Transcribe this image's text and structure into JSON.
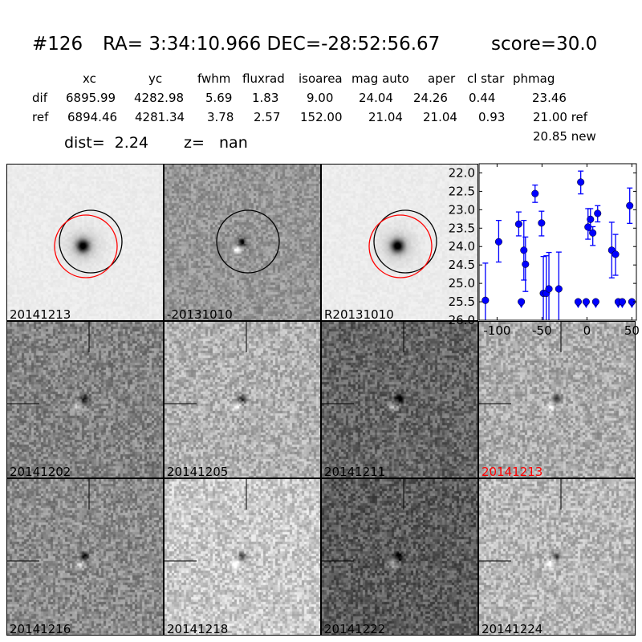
{
  "header": {
    "title_id": "#126",
    "title_radec": "RA= 3:34:10.966 DEC=-28:52:56.67",
    "title_score": "score=30.0"
  },
  "table": {
    "columns": [
      "xc",
      "yc",
      "fwhm",
      "fluxrad",
      "isoarea",
      "mag auto",
      "aper",
      "cl star",
      "phmag"
    ],
    "rows": [
      {
        "label": "dif",
        "values": [
          "6895.99",
          "4282.98",
          "5.69",
          "1.83",
          "9.00",
          "24.04",
          "24.26",
          "0.44",
          "23.46"
        ]
      },
      {
        "label": "ref",
        "values": [
          "6894.46",
          "4281.34",
          "3.78",
          "2.57",
          "152.00",
          "21.04",
          "21.04",
          "0.93",
          "21.00 ref"
        ]
      }
    ],
    "new_phmag": "20.85 new",
    "dist": "dist=  2.24",
    "z": "z=   nan"
  },
  "stamps": [
    {
      "label": "20141213",
      "label_color": "#000000",
      "tone": "#ececec",
      "kind": "star",
      "circles": [
        "black",
        "red"
      ]
    },
    {
      "label": "-20131010",
      "label_color": "#000000",
      "tone": "#969696",
      "kind": "dipole",
      "circles": [
        "black"
      ]
    },
    {
      "label": "R20131010",
      "label_color": "#000000",
      "tone": "#ececec",
      "kind": "star",
      "circles": [
        "black",
        "red"
      ]
    },
    {
      "label": "20141202",
      "label_color": "#000000",
      "tone": "#848484",
      "kind": "noise"
    },
    {
      "label": "20141205",
      "label_color": "#000000",
      "tone": "#b0b0b0",
      "kind": "noise"
    },
    {
      "label": "20141211",
      "label_color": "#000000",
      "tone": "#666666",
      "kind": "noise"
    },
    {
      "label": "20141213",
      "label_color": "#ff0000",
      "tone": "#acacac",
      "kind": "noise"
    },
    {
      "label": "20141216",
      "label_color": "#000000",
      "tone": "#8c8c8c",
      "kind": "noise"
    },
    {
      "label": "20141218",
      "label_color": "#000000",
      "tone": "#cacaca",
      "kind": "noise"
    },
    {
      "label": "20141222",
      "label_color": "#000000",
      "tone": "#5c5c5c",
      "kind": "noise"
    },
    {
      "label": "20141224",
      "label_color": "#000000",
      "tone": "#b8b8b8",
      "kind": "noise"
    }
  ],
  "chart_data": {
    "type": "scatter",
    "title": "",
    "xlabel": "",
    "ylabel": "",
    "xlim": [
      -120,
      55
    ],
    "ylim": [
      26.0,
      21.75
    ],
    "y_inverted": true,
    "grid": false,
    "color": "#0000ff",
    "x_ticks": [
      "-100",
      "-50",
      "0",
      "50"
    ],
    "y_ticks": [
      "22.0",
      "22.5",
      "23.0",
      "23.5",
      "24.0",
      "24.5",
      "25.0",
      "25.5",
      "26.0"
    ],
    "detections": [
      {
        "x": -113,
        "y": 25.46,
        "lo": 24.45,
        "hi": 26.5
      },
      {
        "x": -98.2,
        "y": 23.87,
        "lo": 23.29,
        "hi": 24.42
      },
      {
        "x": -75.9,
        "y": 23.39,
        "lo": 23.06,
        "hi": 23.71
      },
      {
        "x": -70.2,
        "y": 24.1,
        "lo": 23.29,
        "hi": 24.91
      },
      {
        "x": -68.4,
        "y": 24.48,
        "lo": 23.74,
        "hi": 25.22
      },
      {
        "x": -57.7,
        "y": 22.56,
        "lo": 22.33,
        "hi": 22.8
      },
      {
        "x": -50.5,
        "y": 23.36,
        "lo": 23.04,
        "hi": 23.71
      },
      {
        "x": -48.5,
        "y": 25.27,
        "lo": 24.27,
        "hi": 26.5
      },
      {
        "x": -45.2,
        "y": 25.27,
        "lo": 24.25,
        "hi": 26.5
      },
      {
        "x": -42.3,
        "y": 25.15,
        "lo": 24.16,
        "hi": 26.5
      },
      {
        "x": -31.3,
        "y": 25.15,
        "lo": 24.15,
        "hi": 26.5
      },
      {
        "x": -6.9,
        "y": 22.25,
        "lo": 21.95,
        "hi": 22.57
      },
      {
        "x": 1.2,
        "y": 23.47,
        "lo": 22.97,
        "hi": 23.8
      },
      {
        "x": 3.9,
        "y": 23.26,
        "lo": 22.97,
        "hi": 23.57
      },
      {
        "x": 6.5,
        "y": 23.63,
        "lo": 23.46,
        "hi": 23.97
      },
      {
        "x": 11.9,
        "y": 23.1,
        "lo": 22.89,
        "hi": 23.33
      },
      {
        "x": 27.6,
        "y": 24.1,
        "lo": 23.34,
        "hi": 24.85
      },
      {
        "x": 31.8,
        "y": 24.21,
        "lo": 23.67,
        "hi": 24.78
      },
      {
        "x": 47.6,
        "y": 22.89,
        "lo": 22.41,
        "hi": 23.37
      }
    ],
    "upper_limits": [
      {
        "x": -73,
        "y": 25.5
      },
      {
        "x": -9.8,
        "y": 25.5
      },
      {
        "x": -0.9,
        "y": 25.5
      },
      {
        "x": 9.8,
        "y": 25.5
      },
      {
        "x": 34.8,
        "y": 25.5
      },
      {
        "x": 39.3,
        "y": 25.5
      },
      {
        "x": 50,
        "y": 25.5
      }
    ]
  }
}
